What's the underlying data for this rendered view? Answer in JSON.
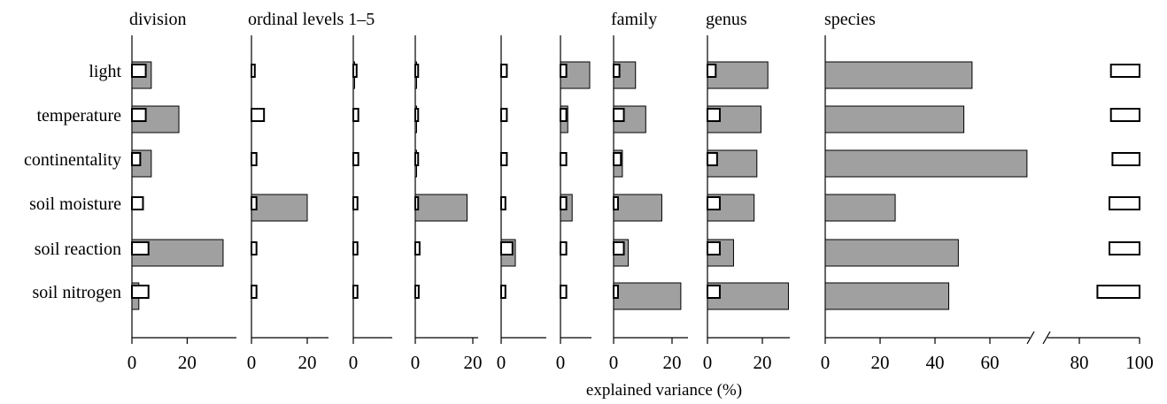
{
  "chart_data": {
    "type": "bar",
    "xlabel": "explained variance (%)",
    "categories": [
      "light",
      "temperature",
      "continentality",
      "soil moisture",
      "soil reaction",
      "soil nitrogen"
    ],
    "legend": "none",
    "panels": [
      {
        "title": "division",
        "xlim": [
          0,
          33
        ],
        "ticks": [
          0,
          20
        ],
        "grey": [
          7,
          17,
          7,
          0,
          33,
          2.5
        ],
        "white": [
          5,
          5,
          3,
          4,
          6,
          6
        ]
      },
      {
        "title": "ordinal levels 1–5",
        "xlim": [
          0,
          28
        ],
        "ticks": [
          0,
          20
        ],
        "grey": [
          0,
          0,
          0,
          20,
          0,
          0
        ],
        "white": [
          1.2,
          4.5,
          1.8,
          1.8,
          1.8,
          1.8
        ]
      },
      {
        "title": "",
        "xlim": [
          0,
          30
        ],
        "ticks": [
          0
        ],
        "grey": [
          0.2,
          0,
          0,
          0,
          0,
          0
        ],
        "white": [
          1.2,
          1.8,
          1.8,
          1.5,
          1.5,
          1.5
        ]
      },
      {
        "title": "",
        "xlim": [
          0,
          21
        ],
        "ticks": [
          0,
          20
        ],
        "grey": [
          0.2,
          0.2,
          0.3,
          18,
          0,
          0
        ],
        "white": [
          1.0,
          1.0,
          1.0,
          1.0,
          1.5,
          1.2
        ]
      },
      {
        "title": "",
        "xlim": [
          0,
          16
        ],
        "ticks": [
          0
        ],
        "grey": [
          0,
          0,
          0,
          0,
          5,
          0
        ],
        "white": [
          2,
          2,
          2,
          1.5,
          4,
          1.5
        ]
      },
      {
        "title": "",
        "xlim": [
          0,
          10
        ],
        "ticks": [
          0
        ],
        "grey": [
          10,
          2.5,
          0,
          4,
          0,
          0
        ],
        "white": [
          2,
          2,
          2,
          2,
          2,
          2
        ]
      },
      {
        "title": "family",
        "xlim": [
          0,
          25
        ],
        "ticks": [
          0,
          20
        ],
        "grey": [
          7.5,
          11,
          3,
          16.5,
          5,
          23
        ],
        "white": [
          2,
          3.5,
          2.5,
          1.5,
          3.5,
          1.5
        ]
      },
      {
        "title": "genus",
        "xlim": [
          0,
          30
        ],
        "ticks": [
          0,
          20
        ],
        "grey": [
          22,
          19.5,
          18,
          17,
          9.5,
          29.5
        ],
        "white": [
          3,
          4.5,
          3.5,
          4.5,
          4.5,
          4.5
        ]
      },
      {
        "title": "species",
        "xlim": [
          0,
          100
        ],
        "ticks": [
          0,
          20,
          40,
          60,
          80,
          100
        ],
        "grey": [
          53.5,
          50.5,
          73.5,
          25.5,
          48.5,
          45
        ],
        "white": [
          9.5,
          9.5,
          9,
          10,
          10,
          14
        ],
        "axis_break": true
      }
    ]
  }
}
